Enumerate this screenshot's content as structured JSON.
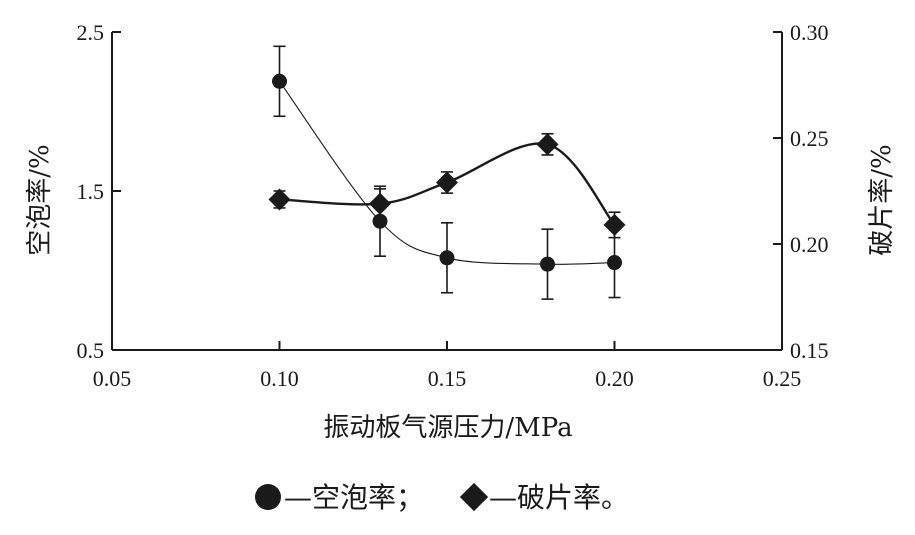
{
  "chart_data": {
    "type": "line",
    "xlabel": "振动板气源压力/MPa",
    "ylabel_left": "空泡率/%",
    "ylabel_right": "破片率/%",
    "xlim": [
      0.05,
      0.25
    ],
    "x_ticks": [
      "0.05",
      "0.10",
      "0.15",
      "0.20",
      "0.25"
    ],
    "ylim_left": [
      0.5,
      2.5
    ],
    "y_ticks_left": [
      "0.5",
      "1.5",
      "2.5"
    ],
    "ylim_right": [
      0.15,
      0.3
    ],
    "y_ticks_right": [
      "0.15",
      "0.20",
      "0.25",
      "0.30"
    ],
    "grid": false,
    "legend_placement": "bottom",
    "series": [
      {
        "name": "空泡率",
        "axis": "left",
        "marker": "circle",
        "line": "thin-smooth",
        "x": [
          0.1,
          0.13,
          0.15,
          0.18,
          0.2
        ],
        "y": [
          2.19,
          1.31,
          1.08,
          1.04,
          1.05
        ],
        "error": [
          0.22,
          0.22,
          0.22,
          0.22,
          0.22
        ]
      },
      {
        "name": "破片率",
        "axis": "right",
        "marker": "diamond",
        "line": "thick-smooth",
        "x": [
          0.1,
          0.13,
          0.15,
          0.18,
          0.2
        ],
        "y": [
          0.221,
          0.219,
          0.229,
          0.247,
          0.209
        ],
        "error": [
          0.004,
          0.007,
          0.005,
          0.005,
          0.006
        ]
      }
    ],
    "legend": {
      "items": [
        "—空泡率；",
        "—破片率。"
      ]
    }
  }
}
